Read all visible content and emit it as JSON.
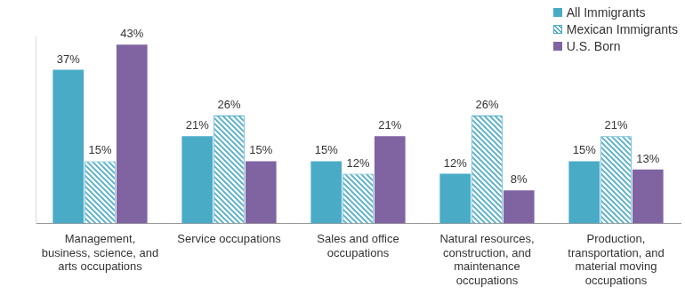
{
  "chart_data": {
    "type": "bar",
    "categories": [
      "Management, business, science, and arts occupations",
      "Service occupations",
      "Sales and office occupations",
      "Natural resources, construction, and maintenance occupations",
      "Production, transportation, and material moving occupations"
    ],
    "series": [
      {
        "name": "All Immigrants",
        "color": "#4aabc7",
        "values": [
          37,
          21,
          15,
          12,
          15
        ],
        "value_labels": [
          "37%",
          "21%",
          "15%",
          "12%",
          "15%"
        ]
      },
      {
        "name": "Mexican Immigrants",
        "color": "#4aabc7",
        "marker": "hatch",
        "values": [
          15,
          26,
          12,
          26,
          21
        ],
        "value_labels": [
          "15%",
          "26%",
          "12%",
          "26%",
          "21%"
        ]
      },
      {
        "name": "U.S. Born",
        "color": "#8064a2",
        "values": [
          43,
          15,
          21,
          8,
          13
        ],
        "value_labels": [
          "43%",
          "15%",
          "21%",
          "8%",
          "13%"
        ]
      }
    ],
    "ylim": [
      0,
      45
    ],
    "grid": false,
    "legend": "upper right",
    "data_labels": true,
    "tick_labels": "x"
  }
}
